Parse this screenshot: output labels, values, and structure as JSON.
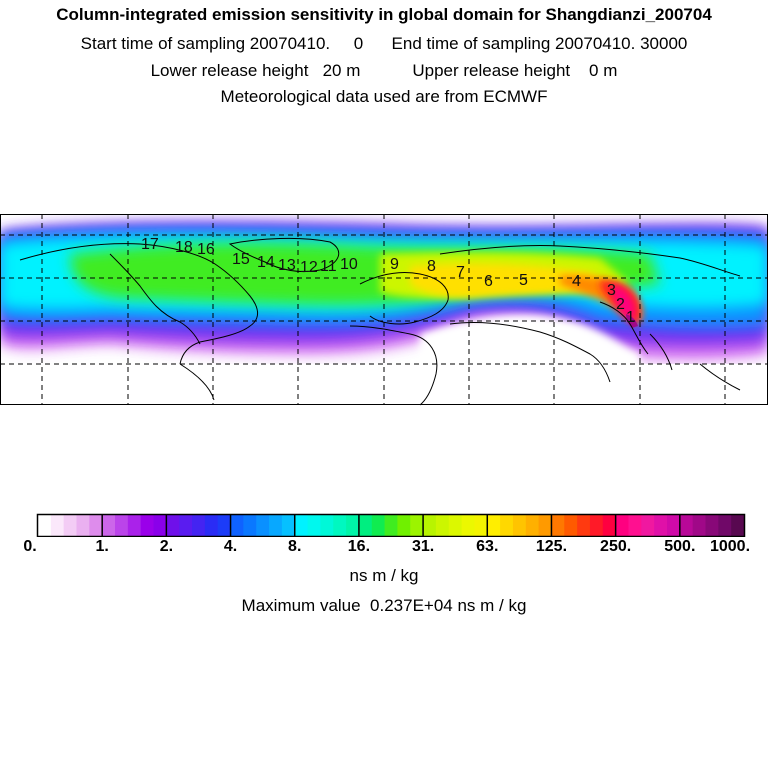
{
  "header": {
    "line1": "Column-integrated emission sensitivity in global domain for Shangdianzi_200704",
    "line2": "Start time of sampling 20070410.     0      End time of sampling 20070410. 30000",
    "line3": "Lower release height   20 m           Upper release height    0 m",
    "line4": "Meteorological data used are from ECMWF"
  },
  "map": {
    "day_markers": [
      "17",
      "18",
      "16",
      "15",
      "14",
      "13",
      "12",
      "11",
      "10",
      "9",
      "8",
      "7",
      "6",
      "5",
      "4",
      "3",
      "2",
      "1"
    ]
  },
  "chart_data": {
    "type": "heatmap",
    "title": "Column-integrated emission sensitivity in global domain for Shangdianzi_200704",
    "colorbar": {
      "ticks": [
        "0.",
        "1.",
        "2.",
        "4.",
        "8.",
        "16.",
        "31.",
        "63.",
        "125.",
        "250.",
        "500.",
        "1000."
      ],
      "colors": [
        "#ffffff",
        "#fbe8fb",
        "#f3ccf5",
        "#eab0f0",
        "#de8cec",
        "#cc66ea",
        "#bb44ea",
        "#aa22ea",
        "#9a00ea",
        "#8a00ea",
        "#6f10ea",
        "#5a1cf0",
        "#4424f2",
        "#2a2cf5",
        "#1c3cf8",
        "#0f62ff",
        "#0a78ff",
        "#0a90ff",
        "#08a8ff",
        "#06c0ff",
        "#00f2ff",
        "#00f8ee",
        "#00f8d8",
        "#00f8c0",
        "#00f5a8",
        "#00ee80",
        "#10ec50",
        "#40ec20",
        "#70f000",
        "#9cf400",
        "#b8f400",
        "#ccf600",
        "#dcf800",
        "#ecf800",
        "#f4f400",
        "#ffee00",
        "#ffd800",
        "#ffc400",
        "#ffb000",
        "#ff9a00",
        "#ff7800",
        "#ff5a00",
        "#ff3a10",
        "#ff1a28",
        "#ff0040",
        "#ff0080",
        "#ff1090",
        "#f018a0",
        "#e010a8",
        "#d00aa8",
        "#b80898",
        "#a00888",
        "#880878",
        "#700868",
        "#580850"
      ],
      "unit": "ns m / kg"
    },
    "max_value_text": "Maximum value  0.237E+04 ns m / kg"
  }
}
